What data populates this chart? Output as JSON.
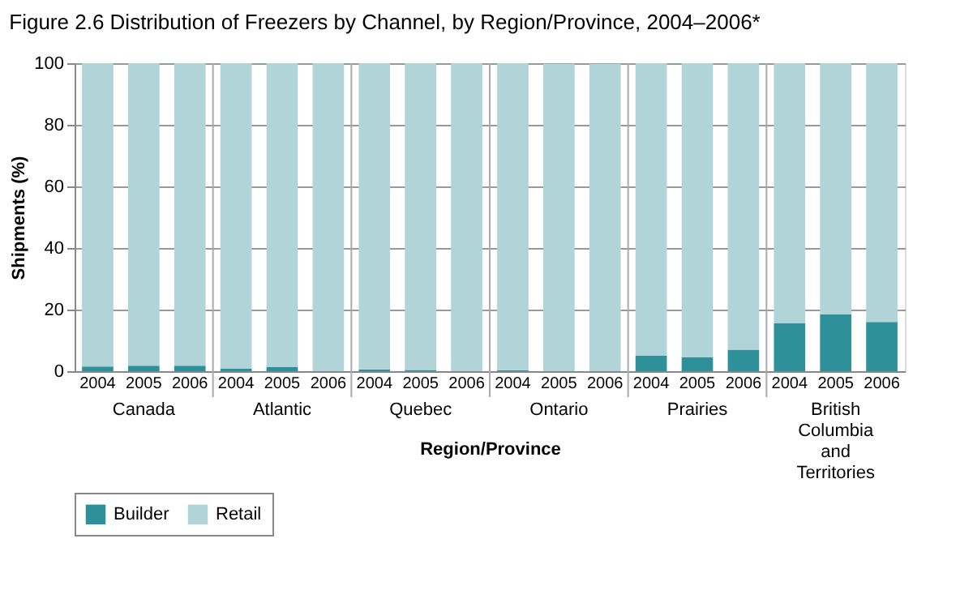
{
  "chart_data": {
    "type": "bar",
    "stacked": true,
    "title": "Figure 2.6  Distribution of Freezers by Channel, by Region/Province, 2004–2006*",
    "xlabel": "Region/Province",
    "ylabel": "Shipments (%)",
    "categories": [
      "2004",
      "2005",
      "2006",
      "2004",
      "2005",
      "2006",
      "2004",
      "2005",
      "2006",
      "2004",
      "2005",
      "2006",
      "2004",
      "2005",
      "2006",
      "2004",
      "2005",
      "2006"
    ],
    "series": [
      {
        "name": "Builder",
        "color": "#2e9199",
        "values": [
          1.5,
          1.8,
          1.8,
          0.8,
          1.3,
          0,
          0.6,
          0.4,
          0,
          0.3,
          null,
          null,
          5,
          4.5,
          7,
          15.5,
          18.5,
          16
        ]
      },
      {
        "name": "Retail",
        "color": "#b0d4d8",
        "values": [
          98.5,
          98.2,
          98.2,
          99.2,
          98.7,
          100,
          99.4,
          99.6,
          100,
          99.7,
          99.8,
          99.8,
          95,
          95.5,
          93,
          84.5,
          81.5,
          84
        ]
      }
    ],
    "annotations": [
      "Canada",
      "Atlantic",
      "Quebec",
      "Ontario",
      "Prairies",
      "British Columbia and Territories"
    ],
    "ylim": [
      0,
      100
    ],
    "yticks": [
      0,
      20,
      40,
      60,
      80,
      100
    ],
    "grid": "y",
    "legend": "bottom"
  }
}
